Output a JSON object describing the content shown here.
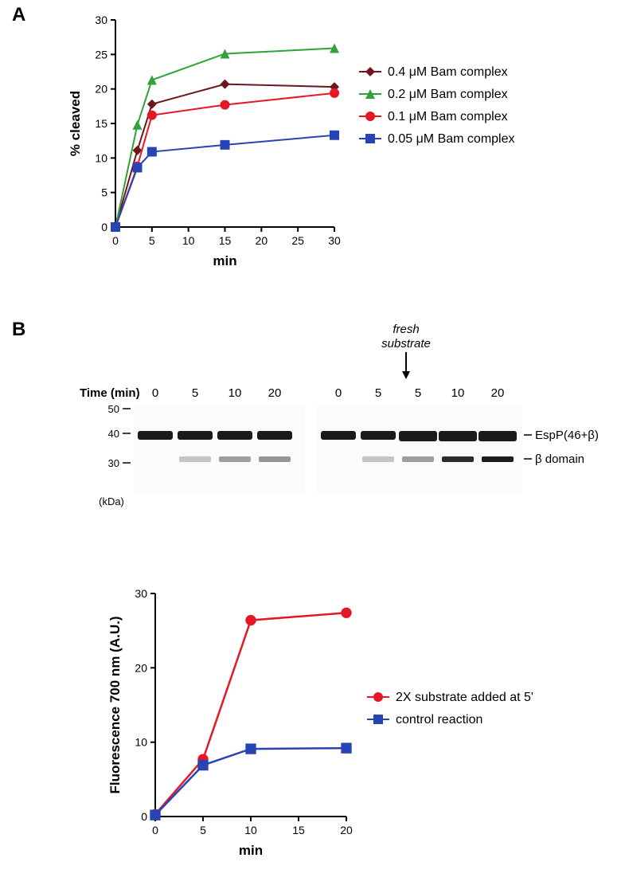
{
  "panelA": {
    "label": "A",
    "chart": {
      "type": "line",
      "xlabel": "min",
      "ylabel": "% cleaved",
      "xlim": [
        0,
        30
      ],
      "ylim": [
        0,
        30
      ],
      "xticks": [
        0,
        5,
        10,
        15,
        20,
        25,
        30
      ],
      "yticks": [
        0,
        5,
        10,
        15,
        20,
        25,
        30
      ],
      "label_fontsize": 17,
      "tick_fontsize": 14,
      "axis_color": "#000000",
      "grid": false,
      "series": [
        {
          "name": "0.4 μM Bam complex",
          "color": "#6d161d",
          "marker": "diamond",
          "marker_size": 9,
          "line_width": 2,
          "x": [
            0,
            3,
            5,
            15,
            30
          ],
          "y": [
            0,
            11.1,
            17.8,
            20.7,
            20.3
          ]
        },
        {
          "name": "0.2 μM Bam complex",
          "color": "#2fa339",
          "marker": "triangle",
          "marker_size": 9,
          "line_width": 2,
          "x": [
            0,
            3,
            5,
            15,
            30
          ],
          "y": [
            0,
            14.8,
            21.3,
            25.1,
            25.9
          ]
        },
        {
          "name": "0.1 μM Bam complex",
          "color": "#e51725",
          "marker": "circle",
          "marker_size": 9,
          "line_width": 2,
          "x": [
            0,
            3,
            5,
            15,
            30
          ],
          "y": [
            0,
            8.8,
            16.2,
            17.7,
            19.4
          ]
        },
        {
          "name": "0.05 μM Bam complex",
          "color": "#2844b4",
          "marker": "square",
          "marker_size": 9,
          "line_width": 2,
          "x": [
            0,
            3,
            5,
            15,
            30
          ],
          "y": [
            0,
            8.6,
            10.9,
            11.9,
            13.3
          ]
        }
      ],
      "legend_fontsize": 16,
      "legend_items": [
        {
          "label": "0.4 μM Bam complex",
          "color": "#6d161d",
          "marker": "diamond"
        },
        {
          "label": "0.2 μM Bam complex",
          "color": "#2fa339",
          "marker": "triangle"
        },
        {
          "label": "0.1 μM Bam complex",
          "color": "#e51725",
          "marker": "circle"
        },
        {
          "label": "0.05 μM Bam complex",
          "color": "#2844b4",
          "marker": "square"
        }
      ]
    }
  },
  "panelB": {
    "label": "B",
    "gel": {
      "time_label": "Time (min)",
      "mw_label": "(kDa)",
      "mw_markers": [
        "50",
        "40",
        "30"
      ],
      "lanes_left": [
        "0",
        "5",
        "10",
        "20"
      ],
      "lanes_right": [
        "0",
        "5",
        "5",
        "10",
        "20"
      ],
      "bands_right": [
        {
          "name": "EspP(46+β)",
          "y": 0.42
        },
        {
          "name": "β domain",
          "y": 0.6
        }
      ],
      "fresh_substrate_label": "fresh\nsubstrate",
      "fresh_substrate_fontstyle": "italic",
      "label_fontsize": 15,
      "gel_gap": 10
    },
    "chart": {
      "type": "line",
      "xlabel": "min",
      "ylabel": "Fluorescence 700 nm (A.U.)",
      "xlim": [
        0,
        20
      ],
      "ylim": [
        0,
        30
      ],
      "xticks": [
        0,
        5,
        10,
        15,
        20
      ],
      "yticks": [
        0,
        10,
        20,
        30
      ],
      "label_fontsize": 17,
      "tick_fontsize": 14,
      "axis_color": "#000000",
      "grid": false,
      "series": [
        {
          "name": "2X substrate added at 5'",
          "color": "#e51725",
          "marker": "circle",
          "marker_size": 10,
          "line_width": 2.5,
          "x": [
            0,
            5,
            10,
            20
          ],
          "y": [
            0.3,
            7.7,
            26.4,
            27.4
          ]
        },
        {
          "name": "control reaction",
          "color": "#2844b4",
          "marker": "square",
          "marker_size": 10,
          "line_width": 2.5,
          "x": [
            0,
            5,
            10,
            20
          ],
          "y": [
            0.2,
            6.9,
            9.1,
            9.2
          ]
        }
      ],
      "legend_fontsize": 16,
      "legend_items": [
        {
          "label": "2X substrate added at 5'",
          "color": "#e51725",
          "marker": "circle"
        },
        {
          "label": "control reaction",
          "color": "#2844b4",
          "marker": "square"
        }
      ]
    }
  }
}
